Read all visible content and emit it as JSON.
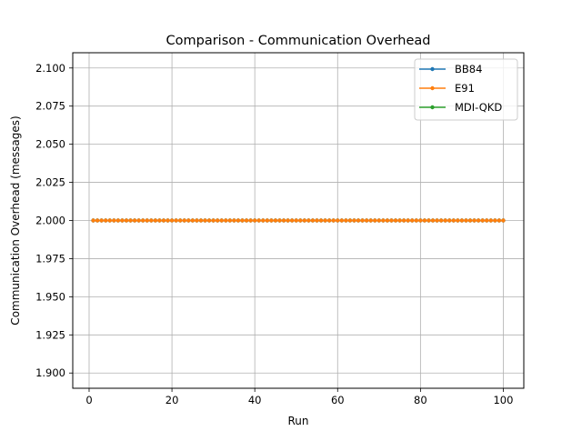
{
  "chart_data": {
    "type": "line",
    "title": "Comparison - Communication Overhead",
    "xlabel": "Run",
    "ylabel": "Communication Overhead (messages)",
    "xlim": [
      -3.95,
      104.95
    ],
    "ylim": [
      1.89,
      2.11
    ],
    "xticks": [
      0,
      20,
      40,
      60,
      80,
      100
    ],
    "xtick_labels": [
      "0",
      "20",
      "40",
      "60",
      "80",
      "100"
    ],
    "yticks": [
      1.9,
      1.925,
      1.95,
      1.975,
      2.0,
      2.025,
      2.05,
      2.075,
      2.1
    ],
    "ytick_labels": [
      "1.900",
      "1.925",
      "1.950",
      "1.975",
      "2.000",
      "2.025",
      "2.050",
      "2.075",
      "2.100"
    ],
    "grid": true,
    "legend_position": "top-right",
    "x_start": 1,
    "x_end": 100,
    "series": [
      {
        "name": "BB84",
        "color": "#1f77b4",
        "marker": "circle",
        "constant_value": 2.0
      },
      {
        "name": "E91",
        "color": "#ff7f0e",
        "marker": "circle",
        "constant_value": 2.0
      },
      {
        "name": "MDI-QKD",
        "color": "#2ca02c",
        "marker": "circle",
        "constant_value": 2.0
      }
    ]
  }
}
